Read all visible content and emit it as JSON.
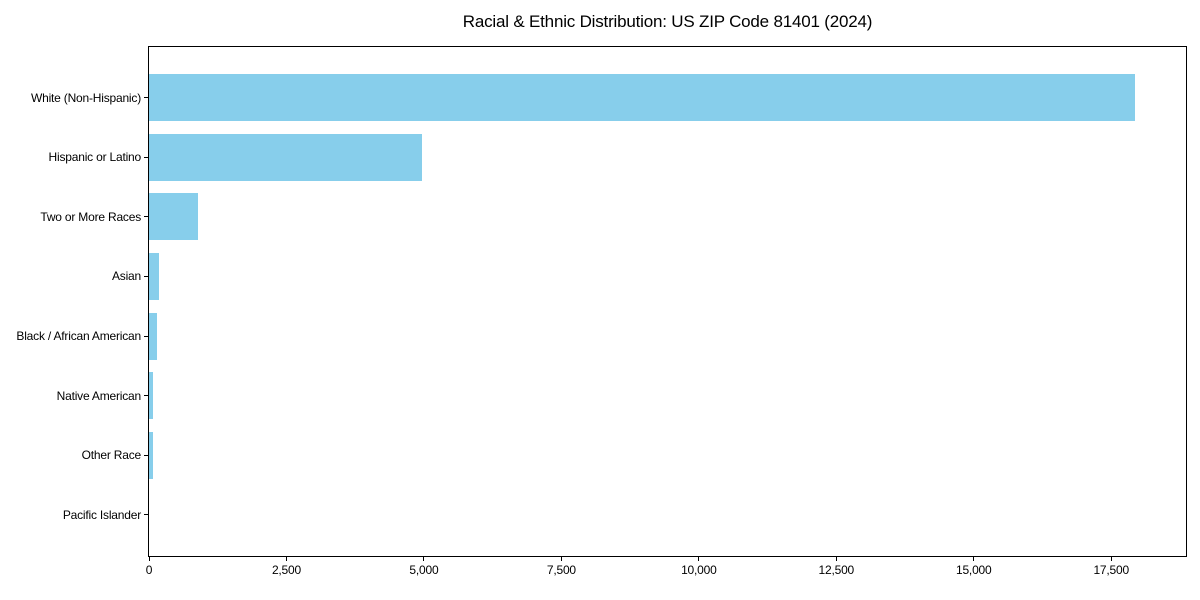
{
  "title": "Racial & Ethnic Distribution: US ZIP Code 81401 (2024)",
  "chart_data": {
    "type": "bar",
    "orientation": "horizontal",
    "title": "Racial & Ethnic Distribution: US ZIP Code 81401 (2024)",
    "xlabel": "",
    "ylabel": "",
    "categories": [
      "White (Non-Hispanic)",
      "Hispanic or Latino",
      "Two or More Races",
      "Asian",
      "Black / African American",
      "Native American",
      "Other Race",
      "Pacific Islander"
    ],
    "values": [
      17940,
      4965,
      890,
      190,
      140,
      70,
      80,
      0
    ],
    "xlim": [
      0,
      18860
    ],
    "x_ticks": [
      0,
      2500,
      5000,
      7500,
      10000,
      12500,
      15000,
      17500
    ],
    "x_tick_labels": [
      "0",
      "2,500",
      "5,000",
      "7,500",
      "10,000",
      "12,500",
      "15,000",
      "17,500"
    ],
    "bar_color": "#87CEEB",
    "axis_color": "#000000",
    "text_color": "#000000",
    "background_color": "#ffffff",
    "grid": false,
    "legend": false
  }
}
